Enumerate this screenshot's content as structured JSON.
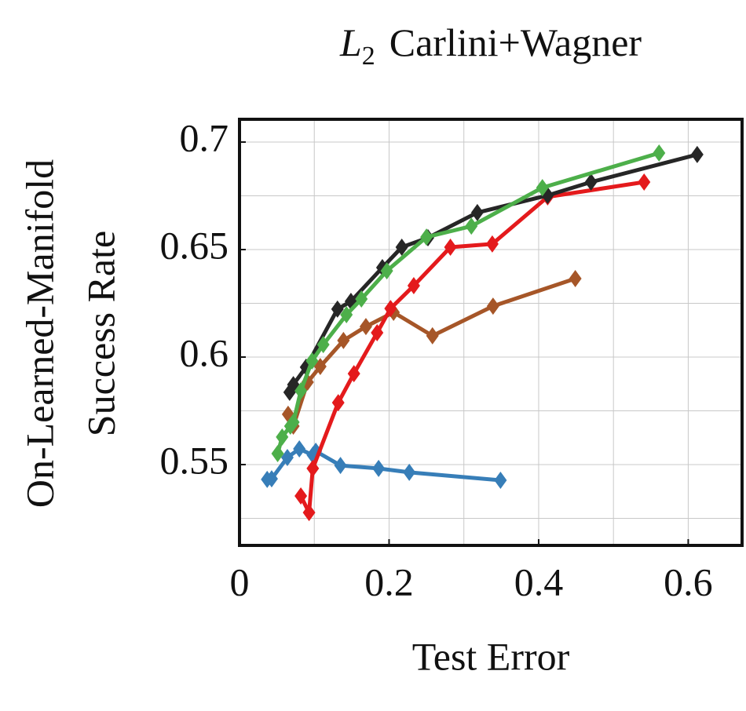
{
  "chart_data": {
    "type": "line",
    "title": {
      "variable": "L",
      "subscript": "2",
      "text": "Carlini+Wagner"
    },
    "xlabel": "Test Error",
    "ylabel": [
      "On-Learned-Manifold",
      "Success Rate"
    ],
    "xlim": [
      0,
      0.672
    ],
    "ylim": [
      0.5124,
      0.7106
    ],
    "xticks": [
      0,
      0.2,
      0.4,
      0.6
    ],
    "yticks": [
      0.55,
      0.6,
      0.65,
      0.7
    ],
    "xminor": [
      0.1,
      0.3,
      0.5
    ],
    "yminor": [
      0.525,
      0.575,
      0.625,
      0.675
    ],
    "grid": true,
    "marker": "diamond",
    "series": [
      {
        "color": "#377eb8",
        "x": [
          0.037,
          0.043,
          0.064,
          0.08,
          0.098,
          0.102,
          0.135,
          0.186,
          0.227,
          0.349
        ],
        "values": [
          0.5431,
          0.5434,
          0.5533,
          0.5573,
          0.5544,
          0.5562,
          0.5496,
          0.5482,
          0.5464,
          0.5427
        ]
      },
      {
        "color": "#a65628",
        "x": [
          0.065,
          0.072,
          0.091,
          0.108,
          0.139,
          0.169,
          0.206,
          0.258,
          0.339,
          0.449
        ],
        "values": [
          0.5734,
          0.5679,
          0.5883,
          0.5956,
          0.6077,
          0.6142,
          0.6208,
          0.6099,
          0.6237,
          0.6365
        ]
      },
      {
        "color": "#e41a1c",
        "x": [
          0.082,
          0.093,
          0.098,
          0.132,
          0.153,
          0.184,
          0.202,
          0.233,
          0.282,
          0.338,
          0.412,
          0.541
        ],
        "values": [
          0.5354,
          0.5277,
          0.5482,
          0.5788,
          0.5923,
          0.6113,
          0.6226,
          0.6332,
          0.6511,
          0.6526,
          0.6745,
          0.6814
        ]
      },
      {
        "color": "#262626",
        "x": [
          0.067,
          0.072,
          0.089,
          0.131,
          0.149,
          0.191,
          0.217,
          0.252,
          0.318,
          0.412,
          0.47,
          0.612
        ],
        "values": [
          0.5836,
          0.5872,
          0.5953,
          0.6223,
          0.6259,
          0.6416,
          0.6511,
          0.6555,
          0.6672,
          0.6752,
          0.6814,
          0.6942
        ]
      },
      {
        "color": "#4daf4a",
        "x": [
          0.051,
          0.057,
          0.068,
          0.072,
          0.082,
          0.097,
          0.112,
          0.143,
          0.163,
          0.197,
          0.25,
          0.31,
          0.405,
          0.561
        ],
        "values": [
          0.5551,
          0.5628,
          0.5679,
          0.5697,
          0.5843,
          0.5982,
          0.6058,
          0.6197,
          0.627,
          0.6401,
          0.6558,
          0.6609,
          0.6788,
          0.6949
        ]
      }
    ]
  }
}
